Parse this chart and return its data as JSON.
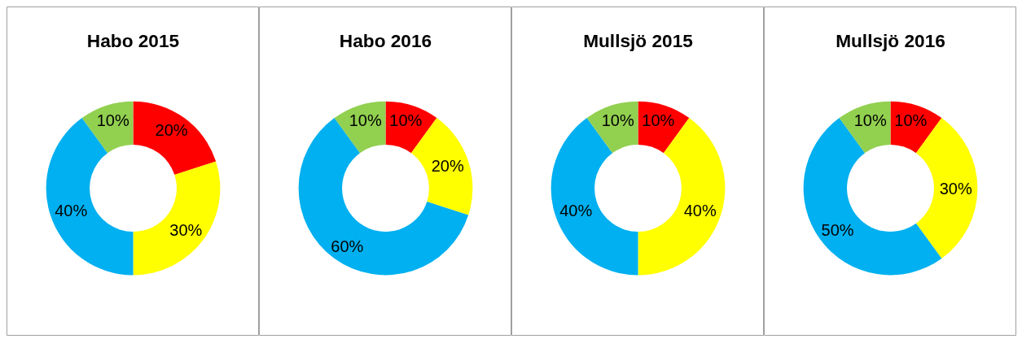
{
  "chart_data": [
    {
      "type": "donut",
      "title": "Habo 2015",
      "categories": [
        null,
        null,
        null,
        null
      ],
      "values": [
        20,
        30,
        40,
        10
      ],
      "colors": [
        "#ff0000",
        "#ffff00",
        "#00b0f0",
        "#92d050"
      ],
      "value_labels": [
        "20%",
        "30%",
        "40%",
        "10%"
      ]
    },
    {
      "type": "donut",
      "title": "Habo 2016",
      "categories": [
        null,
        null,
        null,
        null
      ],
      "values": [
        10,
        20,
        60,
        10
      ],
      "colors": [
        "#ff0000",
        "#ffff00",
        "#00b0f0",
        "#92d050"
      ],
      "value_labels": [
        "10%",
        "20%",
        "60%",
        "10%"
      ]
    },
    {
      "type": "donut",
      "title": "Mullsjö 2015",
      "categories": [
        null,
        null,
        null,
        null
      ],
      "values": [
        10,
        40,
        40,
        10
      ],
      "colors": [
        "#ff0000",
        "#ffff00",
        "#00b0f0",
        "#92d050"
      ],
      "value_labels": [
        "10%",
        "40%",
        "40%",
        "10%"
      ]
    },
    {
      "type": "donut",
      "title": "Mullsjö 2016",
      "categories": [
        null,
        null,
        null,
        null
      ],
      "values": [
        10,
        30,
        50,
        10
      ],
      "colors": [
        "#ff0000",
        "#ffff00",
        "#00b0f0",
        "#92d050"
      ],
      "value_labels": [
        "10%",
        "30%",
        "50%",
        "10%"
      ]
    }
  ]
}
